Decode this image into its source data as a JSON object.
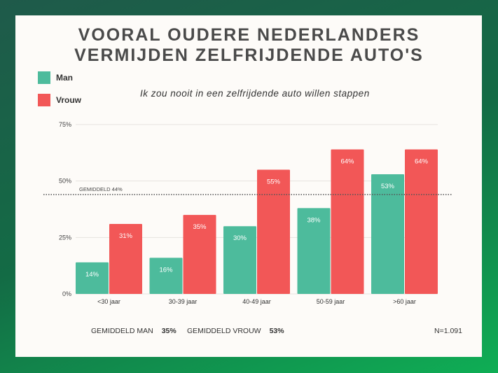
{
  "title_lines": [
    "VOORAL OUDERE NEDERLANDERS",
    "VERMIJDEN ZELFRIJDENDE AUTO'S"
  ],
  "subtitle": "Ik zou nooit in een zelfrijdende auto willen stappen",
  "colors": {
    "man": "#4dbb9c",
    "vrouw": "#f25757"
  },
  "chart_data": {
    "type": "bar",
    "categories": [
      "<30 jaar",
      "30-39 jaar",
      "40-49 jaar",
      "50-59 jaar",
      ">60 jaar"
    ],
    "series": [
      {
        "name": "Man",
        "values": [
          14,
          16,
          30,
          38,
          53
        ]
      },
      {
        "name": "Vrouw",
        "values": [
          31,
          35,
          55,
          64,
          64
        ]
      }
    ],
    "value_labels": {
      "Man": [
        "14%",
        "16%",
        "30%",
        "38%",
        "53%"
      ],
      "Vrouw": [
        "31%",
        "35%",
        "55%",
        "64%",
        "64%"
      ]
    },
    "yticks": [
      "0%",
      "25%",
      "50%",
      "75%"
    ],
    "ytick_values": [
      0,
      25,
      50,
      75
    ],
    "ylim": [
      0,
      75
    ],
    "grid": true,
    "legend": "top-left",
    "reference_line": {
      "label": "GEMIDDELD 44%",
      "value": 44
    }
  },
  "footer": {
    "man_label": "GEMIDDELD MAN",
    "man_value": "35%",
    "vrouw_label": "GEMIDDELD VROUW",
    "vrouw_value": "53%",
    "n": "N=1.091"
  }
}
